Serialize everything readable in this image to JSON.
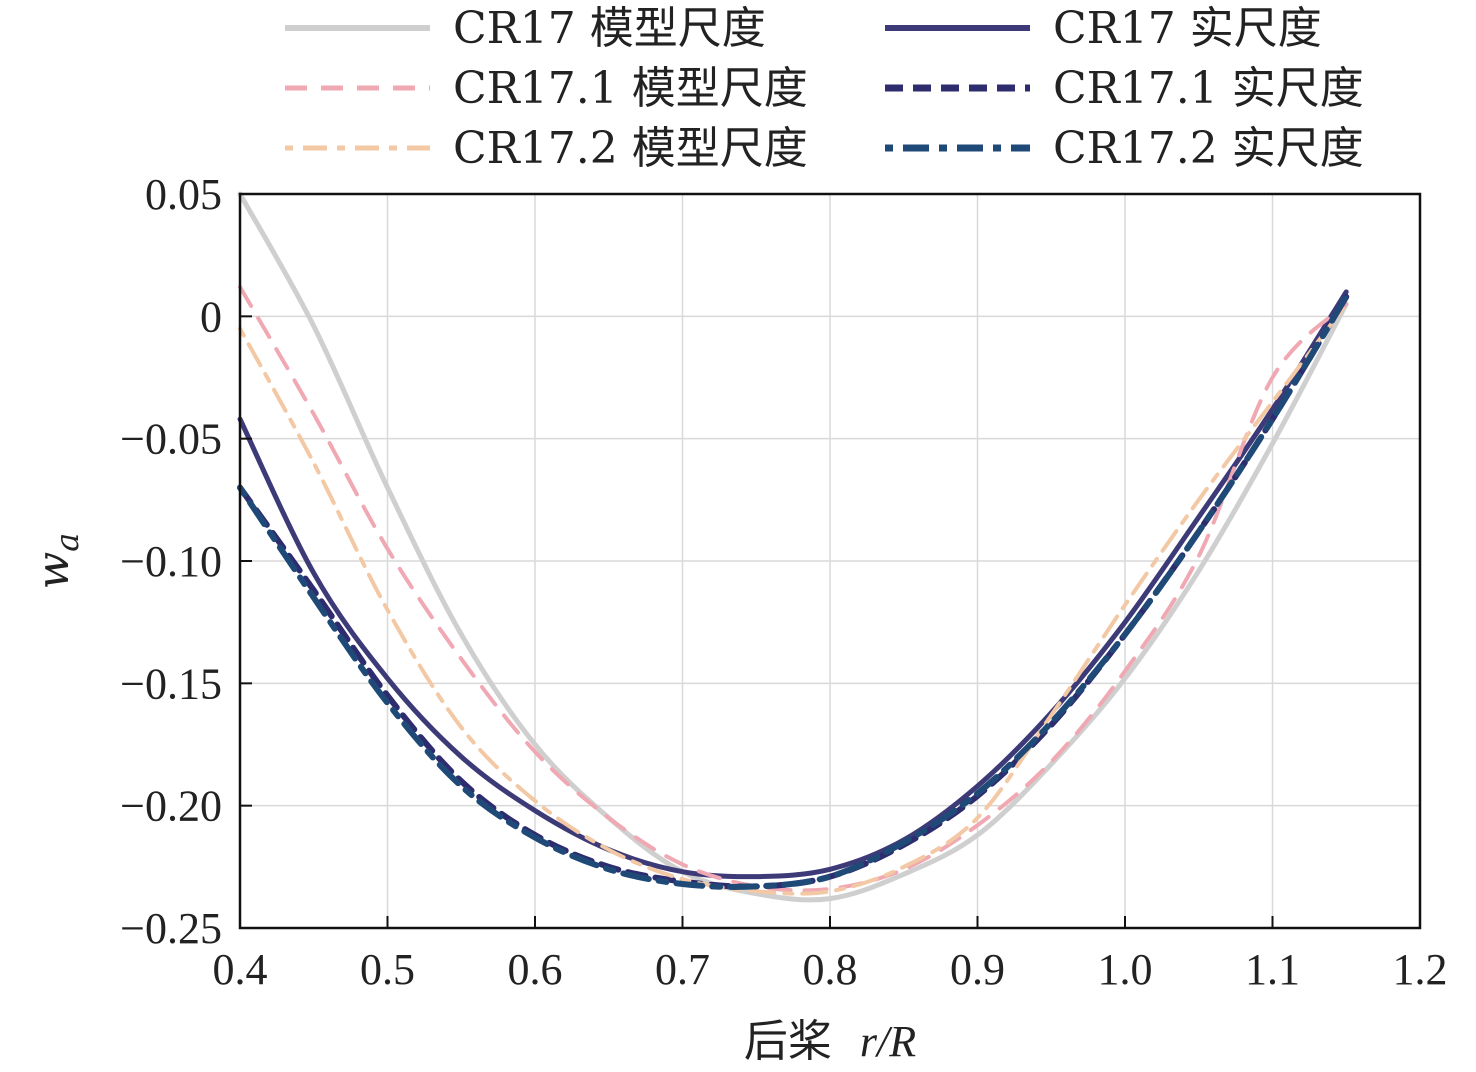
{
  "chart_data": {
    "type": "line",
    "xlabel_prefix": "后桨",
    "xlabel_var": "r/R",
    "ylabel_base": "w",
    "ylabel_sub": "a",
    "xlim": [
      0.4,
      1.2
    ],
    "ylim": [
      -0.25,
      0.05
    ],
    "xticks": [
      "0.4",
      "0.5",
      "0.6",
      "0.7",
      "0.8",
      "0.9",
      "1.0",
      "1.1",
      "1.2"
    ],
    "yticks": [
      "0.05",
      "0",
      "−0.05",
      "−0.10",
      "−0.15",
      "−0.20",
      "−0.25"
    ],
    "grid": true,
    "legend_position": "top",
    "series": [
      {
        "name": "CR17 模型尺度",
        "color": "#cfcfcf",
        "dash": "solid",
        "width": 5,
        "x": [
          0.4,
          0.45,
          0.5,
          0.55,
          0.6,
          0.65,
          0.7,
          0.75,
          0.8,
          0.85,
          0.9,
          0.95,
          1.0,
          1.05,
          1.1,
          1.15
        ],
        "y": [
          0.05,
          -0.004,
          -0.07,
          -0.13,
          -0.175,
          -0.205,
          -0.227,
          -0.236,
          -0.238,
          -0.228,
          -0.212,
          -0.183,
          -0.148,
          -0.104,
          -0.052,
          0.005
        ]
      },
      {
        "name": "CR17 实尺度",
        "color": "#3d3a78",
        "dash": "solid",
        "width": 5,
        "x": [
          0.4,
          0.45,
          0.5,
          0.55,
          0.6,
          0.65,
          0.7,
          0.75,
          0.8,
          0.85,
          0.9,
          0.95,
          1.0,
          1.05,
          1.1,
          1.15
        ],
        "y": [
          -0.042,
          -0.105,
          -0.148,
          -0.18,
          -0.202,
          -0.218,
          -0.227,
          -0.229,
          -0.226,
          -0.214,
          -0.192,
          -0.162,
          -0.125,
          -0.082,
          -0.038,
          0.01
        ]
      },
      {
        "name": "CR17.1 模型尺度",
        "color": "#f0a9b3",
        "dash": "22 14",
        "width": 4,
        "x": [
          0.4,
          0.45,
          0.5,
          0.55,
          0.6,
          0.65,
          0.7,
          0.75,
          0.8,
          0.85,
          0.9,
          0.95,
          1.0,
          1.05,
          1.1,
          1.15
        ],
        "y": [
          0.012,
          -0.04,
          -0.095,
          -0.14,
          -0.178,
          -0.205,
          -0.224,
          -0.233,
          -0.234,
          -0.226,
          -0.208,
          -0.182,
          -0.145,
          -0.098,
          -0.025,
          0.005
        ]
      },
      {
        "name": "CR17.1 实尺度",
        "color": "#2e2b6e",
        "dash": "18 10",
        "width": 6,
        "x": [
          0.4,
          0.45,
          0.5,
          0.55,
          0.6,
          0.65,
          0.7,
          0.75,
          0.8,
          0.85,
          0.9,
          0.95,
          1.0,
          1.05,
          1.1,
          1.15
        ],
        "y": [
          -0.07,
          -0.112,
          -0.155,
          -0.19,
          -0.212,
          -0.225,
          -0.231,
          -0.233,
          -0.229,
          -0.216,
          -0.196,
          -0.167,
          -0.13,
          -0.088,
          -0.042,
          0.008
        ]
      },
      {
        "name": "CR17.2 模型尺度",
        "color": "#f3c8a4",
        "dash": "8 10 24 10",
        "width": 4,
        "x": [
          0.4,
          0.45,
          0.5,
          0.55,
          0.6,
          0.65,
          0.7,
          0.75,
          0.8,
          0.85,
          0.9,
          0.95,
          1.0,
          1.05,
          1.1,
          1.15
        ],
        "y": [
          -0.005,
          -0.06,
          -0.12,
          -0.168,
          -0.198,
          -0.218,
          -0.23,
          -0.235,
          -0.235,
          -0.225,
          -0.205,
          -0.163,
          -0.118,
          -0.075,
          -0.035,
          0.005
        ]
      },
      {
        "name": "CR17.2 实尺度",
        "color": "#1f4a78",
        "dash": "8 10 26 10",
        "width": 6,
        "x": [
          0.4,
          0.45,
          0.5,
          0.55,
          0.6,
          0.65,
          0.7,
          0.75,
          0.8,
          0.85,
          0.9,
          0.95,
          1.0,
          1.05,
          1.1,
          1.15
        ],
        "y": [
          -0.07,
          -0.115,
          -0.158,
          -0.192,
          -0.213,
          -0.226,
          -0.232,
          -0.233,
          -0.229,
          -0.215,
          -0.195,
          -0.166,
          -0.13,
          -0.088,
          -0.042,
          0.008
        ]
      }
    ]
  }
}
